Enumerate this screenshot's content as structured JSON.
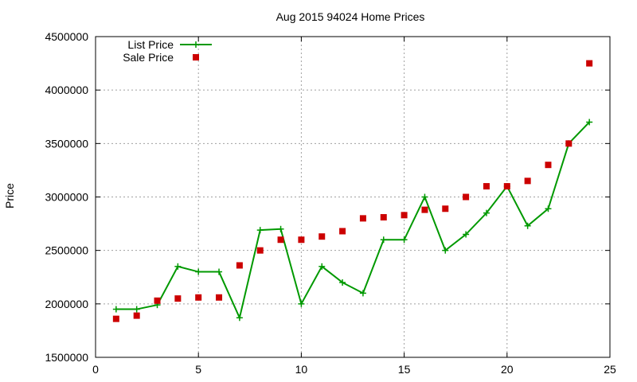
{
  "chart_data": {
    "type": "line",
    "title": "Aug 2015 94024 Home Prices",
    "xlabel": "",
    "ylabel": "Price",
    "xlim": [
      0,
      25
    ],
    "ylim": [
      1500000,
      4500000
    ],
    "xticks": [
      0,
      5,
      10,
      15,
      20,
      25
    ],
    "yticks": [
      1500000,
      2000000,
      2500000,
      3000000,
      3500000,
      4000000,
      4500000
    ],
    "grid": true,
    "legend_position": "top-left",
    "x": [
      1,
      2,
      3,
      4,
      5,
      6,
      7,
      8,
      9,
      10,
      11,
      12,
      13,
      14,
      15,
      16,
      17,
      18,
      19,
      20,
      21,
      22,
      23,
      24
    ],
    "series": [
      {
        "name": "List Price",
        "style": "line-points",
        "marker": "plus",
        "color": "#009900",
        "values": [
          1950000,
          1950000,
          1990000,
          2350000,
          2300000,
          2300000,
          1870000,
          2690000,
          2700000,
          2000000,
          2350000,
          2200000,
          2100000,
          2600000,
          2600000,
          3000000,
          2500000,
          2650000,
          2850000,
          3100000,
          2730000,
          2890000,
          3500000,
          3700000
        ]
      },
      {
        "name": "Sale Price",
        "style": "points",
        "marker": "square",
        "color": "#cc0000",
        "values": [
          1860000,
          1890000,
          2030000,
          2050000,
          2060000,
          2060000,
          2360000,
          2500000,
          2600000,
          2600000,
          2630000,
          2680000,
          2800000,
          2810000,
          2830000,
          2880000,
          2890000,
          3000000,
          3100000,
          3100000,
          3150000,
          3300000,
          3500000,
          4250000
        ]
      }
    ]
  }
}
